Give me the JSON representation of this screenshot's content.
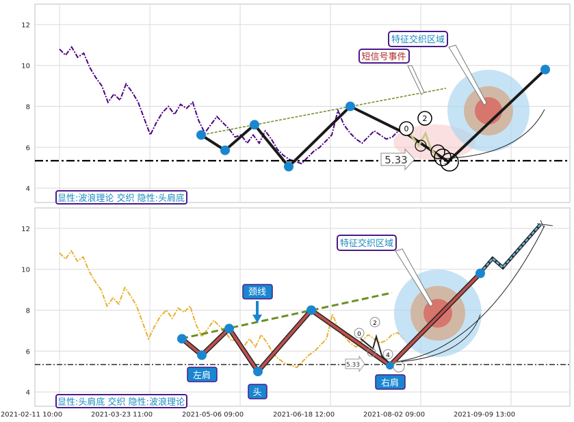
{
  "chart_data": [
    {
      "type": "line",
      "panel": "top",
      "ylim": [
        3.3,
        13
      ],
      "yticks": [
        "4",
        "6",
        "8",
        "10",
        "12"
      ],
      "grid": true,
      "price_series": {
        "color": "#4b0082",
        "points": [
          [
            0,
            10.8
          ],
          [
            2,
            10.5
          ],
          [
            4,
            10.9
          ],
          [
            6,
            10.4
          ],
          [
            8,
            10.6
          ],
          [
            10,
            9.9
          ],
          [
            12,
            9.4
          ],
          [
            14,
            9.0
          ],
          [
            16,
            8.2
          ],
          [
            18,
            8.6
          ],
          [
            20,
            8.3
          ],
          [
            22,
            9.1
          ],
          [
            24,
            8.7
          ],
          [
            26,
            8.2
          ],
          [
            28,
            7.4
          ],
          [
            30,
            6.6
          ],
          [
            32,
            7.2
          ],
          [
            34,
            7.7
          ],
          [
            36,
            8.0
          ],
          [
            38,
            7.6
          ],
          [
            40,
            8.1
          ],
          [
            42,
            7.9
          ],
          [
            44,
            8.2
          ],
          [
            46,
            7.3
          ],
          [
            48,
            6.7
          ],
          [
            50,
            7.1
          ],
          [
            52,
            7.5
          ],
          [
            54,
            7.2
          ],
          [
            56,
            6.9
          ],
          [
            58,
            6.5
          ],
          [
            60,
            6.6
          ],
          [
            62,
            6.2
          ],
          [
            64,
            6.6
          ],
          [
            66,
            6.2
          ],
          [
            68,
            6.8
          ],
          [
            70,
            6.4
          ],
          [
            72,
            5.9
          ],
          [
            74,
            5.6
          ],
          [
            76,
            5.4
          ],
          [
            78,
            5.3
          ],
          [
            80,
            5.2
          ],
          [
            82,
            5.5
          ],
          [
            84,
            5.8
          ],
          [
            86,
            6.0
          ],
          [
            88,
            6.3
          ],
          [
            90,
            6.6
          ],
          [
            92,
            7.8
          ],
          [
            94,
            7.1
          ],
          [
            96,
            6.7
          ],
          [
            98,
            6.4
          ],
          [
            100,
            6.2
          ],
          [
            102,
            6.5
          ],
          [
            104,
            6.8
          ],
          [
            106,
            6.6
          ],
          [
            108,
            6.4
          ],
          [
            110,
            6.5
          ],
          [
            112,
            6.8
          ],
          [
            114,
            6.9
          ],
          [
            116,
            6.6
          ]
        ]
      },
      "wave_points": [
        [
          0,
          6.6
        ],
        [
          1,
          5.85
        ],
        [
          2,
          7.1
        ],
        [
          3,
          5.05
        ],
        [
          4,
          8.0
        ],
        [
          5,
          6.6
        ],
        [
          6,
          5.3
        ],
        [
          7,
          9.8
        ]
      ],
      "support_level": 5.33,
      "support_label": "5.33",
      "trend_line": [
        [
          0,
          6.6
        ],
        [
          1,
          8.9
        ]
      ],
      "wave_labels": [
        "0",
        "2",
        "3",
        "4",
        "5"
      ],
      "annotations": [
        {
          "text": "特征交织区域",
          "color": "#1a8ac0"
        },
        {
          "text": "短信号事件",
          "color": "#b02a2a"
        }
      ],
      "legend_text": "显性:波浪理论 交织 隐性:头肩底"
    },
    {
      "type": "line",
      "panel": "bottom",
      "ylim": [
        3.3,
        13
      ],
      "yticks": [
        "4",
        "6",
        "8",
        "10",
        "12"
      ],
      "grid": true,
      "price_series": {
        "color": "#e8b030"
      },
      "pattern_points": [
        [
          0,
          6.6
        ],
        [
          1,
          5.8
        ],
        [
          2,
          7.1
        ],
        [
          3,
          5.0
        ],
        [
          4,
          8.0
        ],
        [
          5,
          5.3
        ],
        [
          6,
          9.8
        ]
      ],
      "labels": {
        "left_shoulder": "左肩",
        "head": "头",
        "right_shoulder": "右肩",
        "neckline": "颈线"
      },
      "support_level": 5.33,
      "support_label": "5.33",
      "wave_labels": [
        "0",
        "2",
        "3",
        "4"
      ],
      "annotation": {
        "text": "特征交织区域",
        "color": "#1a8ac0"
      },
      "legend_text": "显性:头肩底 交织 隐性:波浪理论",
      "x_ticks": [
        "2021-02-11 10:00",
        "2021-03-23 11:00",
        "2021-05-06 09:00",
        "2021-06-18 12:00",
        "2021-08-02 09:00",
        "2021-09-09 13:00"
      ]
    }
  ]
}
